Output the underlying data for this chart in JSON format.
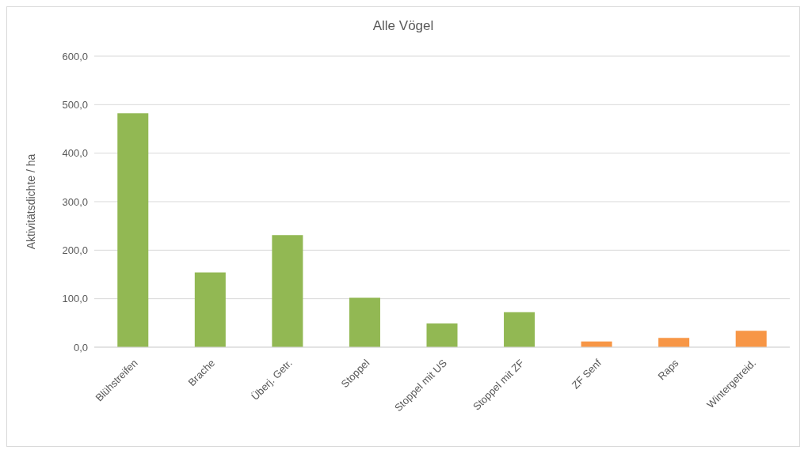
{
  "chart_data": {
    "type": "bar",
    "title": "Alle Vögel",
    "ylabel": "Aktivitätsdichte / ha",
    "categories": [
      "Blühstreifen",
      "Brache",
      "Überj. Getr.",
      "Stoppel",
      "Stoppel mit US",
      "Stoppel mit ZF",
      "ZF Senf",
      "Raps",
      "Wintergetreid."
    ],
    "values": [
      482,
      154,
      231,
      102,
      49,
      72,
      12,
      19,
      34
    ],
    "colors": [
      "#92b853",
      "#92b853",
      "#92b853",
      "#92b853",
      "#92b853",
      "#92b853",
      "#f79646",
      "#f79646",
      "#f79646"
    ],
    "ylim": [
      0,
      600
    ],
    "yticks": [
      {
        "value": 0,
        "label": "0,0"
      },
      {
        "value": 100,
        "label": "100,0"
      },
      {
        "value": 200,
        "label": "200,0"
      },
      {
        "value": 300,
        "label": "300,0"
      },
      {
        "value": 400,
        "label": "400,0"
      },
      {
        "value": 500,
        "label": "500,0"
      },
      {
        "value": 600,
        "label": "600,0"
      }
    ],
    "grid": "y",
    "legend": false
  }
}
